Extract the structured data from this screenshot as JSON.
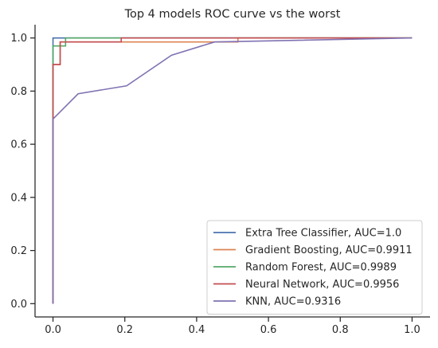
{
  "chart_data": {
    "type": "line",
    "title": "Top 4 models ROC curve vs the worst",
    "xlabel": "",
    "ylabel": "",
    "xlim": [
      -0.05,
      1.05
    ],
    "ylim": [
      -0.05,
      1.05
    ],
    "xticks": [
      0.0,
      0.2,
      0.4,
      0.6,
      0.8,
      1.0
    ],
    "yticks": [
      0.0,
      0.2,
      0.4,
      0.6,
      0.8,
      1.0
    ],
    "xtick_labels": [
      "0.0",
      "0.2",
      "0.4",
      "0.6",
      "0.8",
      "1.0"
    ],
    "ytick_labels": [
      "0.0",
      "0.2",
      "0.4",
      "0.6",
      "0.8",
      "1.0"
    ],
    "grid": false,
    "legend_position": "lower-right",
    "series": [
      {
        "name": "Extra Tree Classifier, AUC=1.0",
        "color": "#4c72b0",
        "x": [
          0.0,
          0.0,
          1.0
        ],
        "y": [
          0.0,
          1.0,
          1.0
        ]
      },
      {
        "name": "Gradient Boosting, AUC=0.9911",
        "color": "#dd8452",
        "x": [
          0.0,
          0.0,
          0.02,
          0.02,
          0.515,
          0.515,
          1.0
        ],
        "y": [
          0.0,
          0.9,
          0.9,
          0.985,
          0.985,
          1.0,
          1.0
        ]
      },
      {
        "name": "Random Forest, AUC=0.9989",
        "color": "#55a868",
        "x": [
          0.0,
          0.0,
          0.01,
          0.01,
          0.035,
          0.035,
          1.0
        ],
        "y": [
          0.0,
          0.97,
          0.97,
          0.97,
          0.97,
          1.0,
          1.0
        ]
      },
      {
        "name": "Neural Network, AUC=0.9956",
        "color": "#c44e52",
        "x": [
          0.0,
          0.0,
          0.02,
          0.02,
          0.19,
          0.19,
          1.0
        ],
        "y": [
          0.0,
          0.9,
          0.9,
          0.985,
          0.985,
          1.0,
          1.0
        ]
      },
      {
        "name": "KNN, AUC=0.9316",
        "color": "#8172b3",
        "x": [
          0.0,
          0.0,
          0.07,
          0.205,
          0.33,
          0.45,
          1.0
        ],
        "y": [
          0.0,
          0.695,
          0.79,
          0.82,
          0.935,
          0.985,
          1.0
        ]
      }
    ]
  }
}
